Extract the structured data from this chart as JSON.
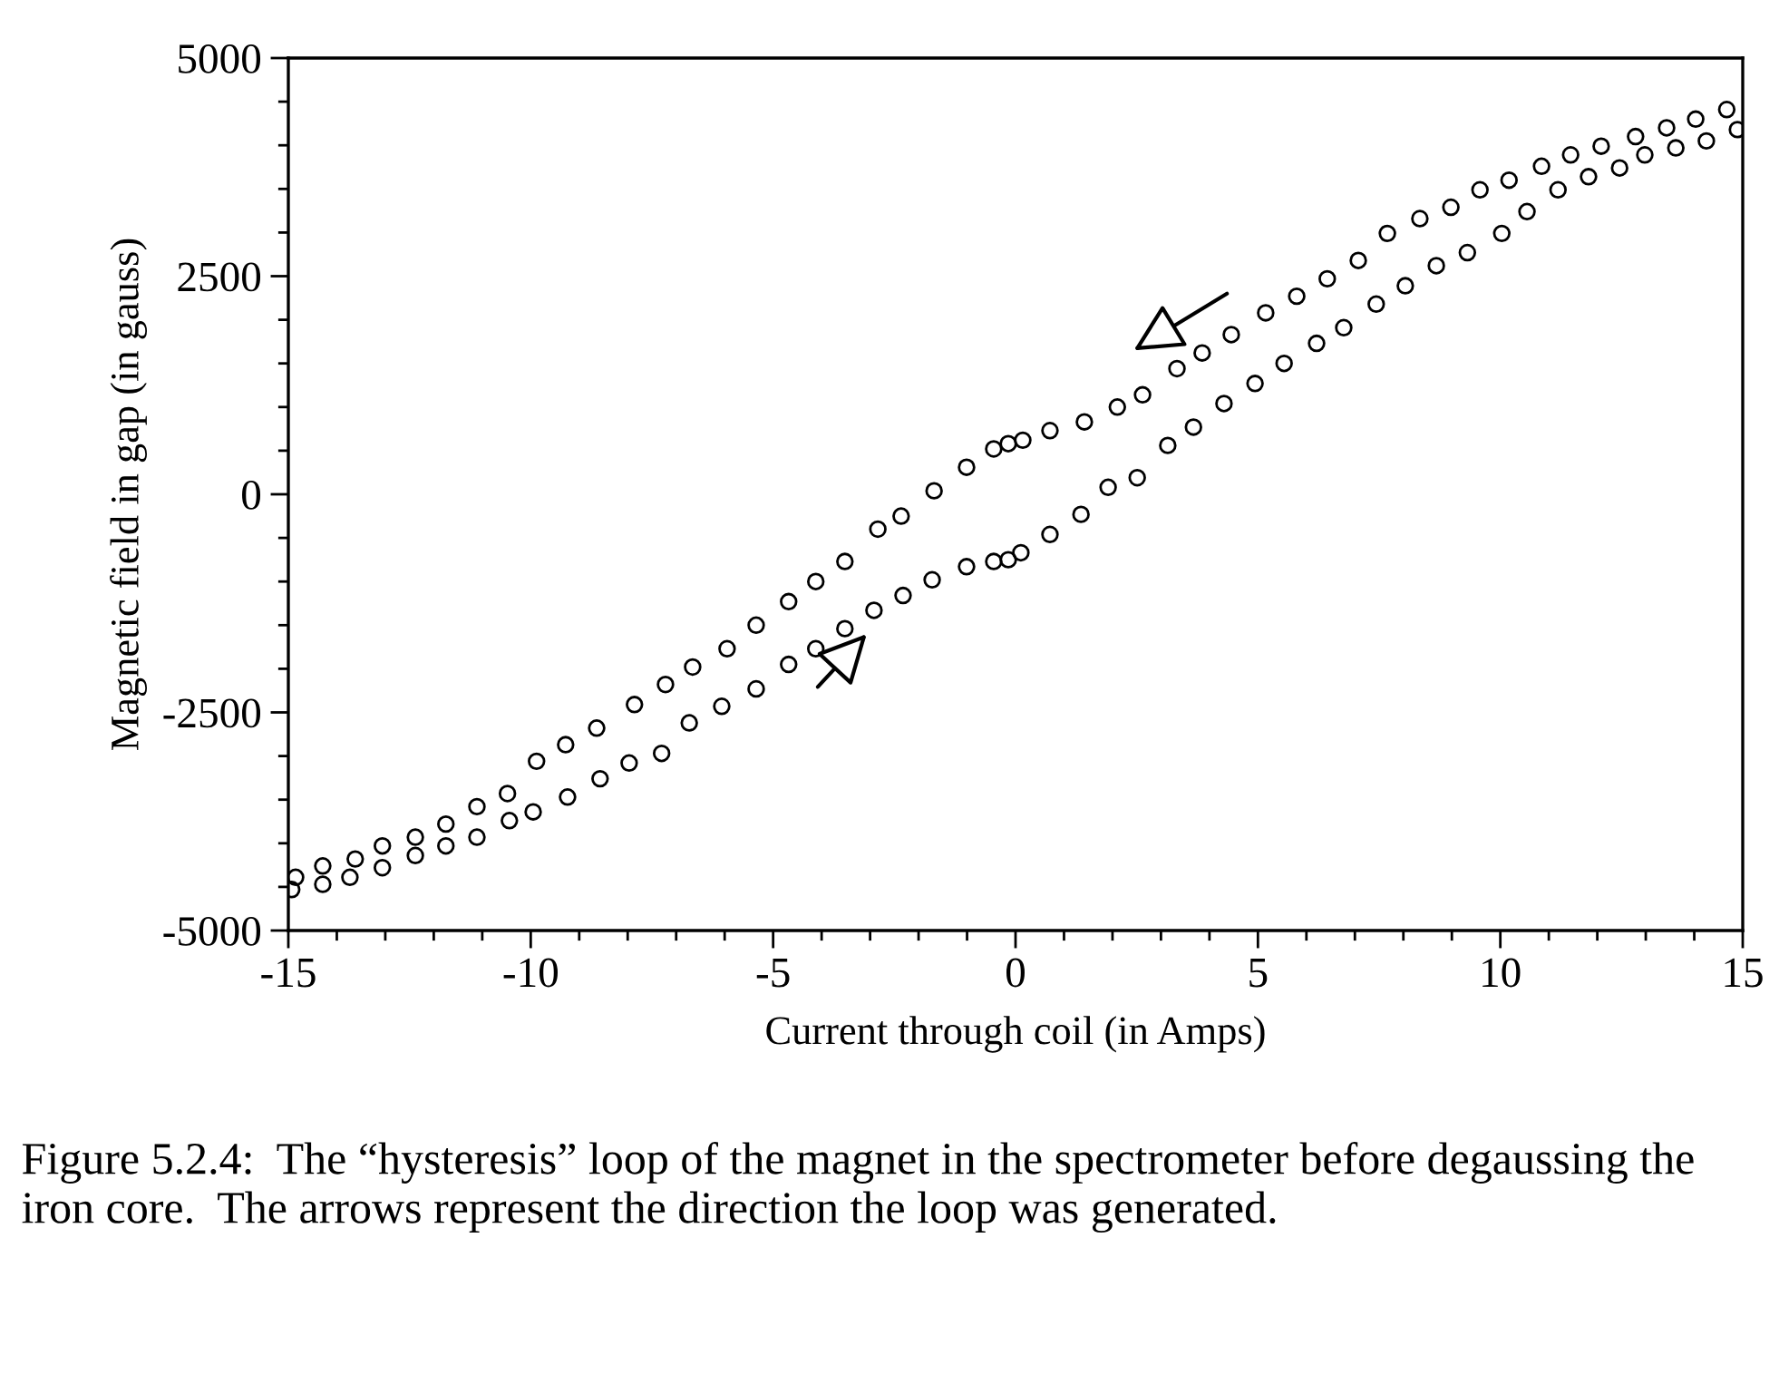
{
  "chart_data": {
    "type": "scatter",
    "xlabel": "Current through coil (in Amps)",
    "ylabel": "Magnetic field in gap (in gauss)",
    "xlim": [
      -15,
      15
    ],
    "ylim": [
      -5000,
      5000
    ],
    "xticks": [
      -15,
      -10,
      -5,
      0,
      5,
      10,
      15
    ],
    "yticks": [
      -5000,
      -2500,
      0,
      2500,
      5000
    ],
    "marker": "circle",
    "grid": false,
    "legend": false,
    "series": [
      {
        "color": "#000000",
        "x": [
          14.67,
          14.03,
          13.43,
          12.79,
          12.08,
          11.45,
          10.85,
          10.18,
          9.58,
          8.98,
          8.34,
          7.67,
          7.07,
          6.43,
          5.8,
          5.16,
          4.45,
          3.85,
          3.33,
          2.62,
          2.1,
          1.42,
          0.71,
          0.15,
          -0.15,
          -0.45,
          -1.01,
          -1.68,
          -2.36,
          -2.84,
          -3.52,
          -4.12,
          -4.68,
          -5.35,
          -5.95,
          -6.66,
          -7.22,
          -7.86,
          -8.64,
          -9.28,
          -9.88,
          -10.48,
          -11.11,
          -11.75,
          -12.38,
          -13.06,
          -13.62,
          -14.29,
          -14.85
        ],
        "values": [
          4410,
          4300,
          4200,
          4100,
          3990,
          3890,
          3760,
          3600,
          3490,
          3290,
          3160,
          2990,
          2680,
          2470,
          2270,
          2080,
          1830,
          1620,
          1440,
          1140,
          1000,
          830,
          730,
          620,
          580,
          520,
          310,
          40,
          -250,
          -400,
          -770,
          -1000,
          -1230,
          -1500,
          -1770,
          -1980,
          -2180,
          -2410,
          -2680,
          -2870,
          -3060,
          -3430,
          -3580,
          -3780,
          -3930,
          -4030,
          -4180,
          -4260,
          -4390
        ]
      },
      {
        "color": "#000000",
        "x": [
          -14.93,
          -14.29,
          -13.73,
          -13.06,
          -12.38,
          -11.75,
          -11.11,
          -10.44,
          -9.95,
          -9.24,
          -8.57,
          -7.97,
          -7.3,
          -6.73,
          -6.06,
          -5.35,
          -4.68,
          -4.12,
          -3.52,
          -2.92,
          -2.32,
          -1.72,
          -1.01,
          -0.45,
          -0.15,
          0.11,
          0.71,
          1.35,
          1.91,
          2.51,
          3.14,
          3.67,
          4.3,
          4.94,
          5.54,
          6.21,
          6.77,
          7.44,
          8.04,
          8.68,
          9.32,
          10.03,
          10.55,
          11.19,
          11.82,
          12.46,
          12.98,
          13.62,
          14.25,
          14.89
        ],
        "values": [
          -4530,
          -4470,
          -4390,
          -4280,
          -4140,
          -4030,
          -3930,
          -3740,
          -3640,
          -3470,
          -3260,
          -3080,
          -2970,
          -2620,
          -2430,
          -2230,
          -1950,
          -1770,
          -1540,
          -1330,
          -1160,
          -980,
          -830,
          -770,
          -750,
          -670,
          -460,
          -230,
          80,
          190,
          560,
          770,
          1040,
          1270,
          1500,
          1730,
          1910,
          2180,
          2390,
          2620,
          2770,
          2990,
          3240,
          3490,
          3640,
          3740,
          3890,
          3970,
          4050,
          4180
        ]
      }
    ],
    "annotations": [
      "Figure 5.2.4:  The “hysteresis” loop of the magnet in the spectrometer before degaussing the iron core.  The arrows represent the direction the loop was generated."
    ]
  }
}
